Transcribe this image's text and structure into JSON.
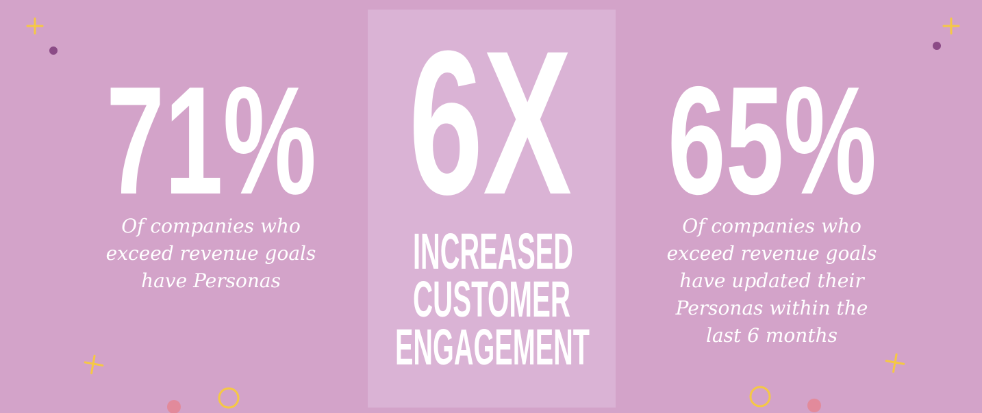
{
  "stats": [
    {
      "figure": "71%",
      "description": [
        "Of companies who",
        "exceed revenue goals",
        "have Personas"
      ]
    },
    {
      "figure": "6X",
      "description": [
        "INCREASED",
        "CUSTOMER",
        "ENGAGEMENT"
      ]
    },
    {
      "figure": "65%",
      "description": [
        "Of companies who",
        "exceed revenue goals",
        "have updated their",
        "Personas within the",
        "last 6 months"
      ]
    }
  ]
}
